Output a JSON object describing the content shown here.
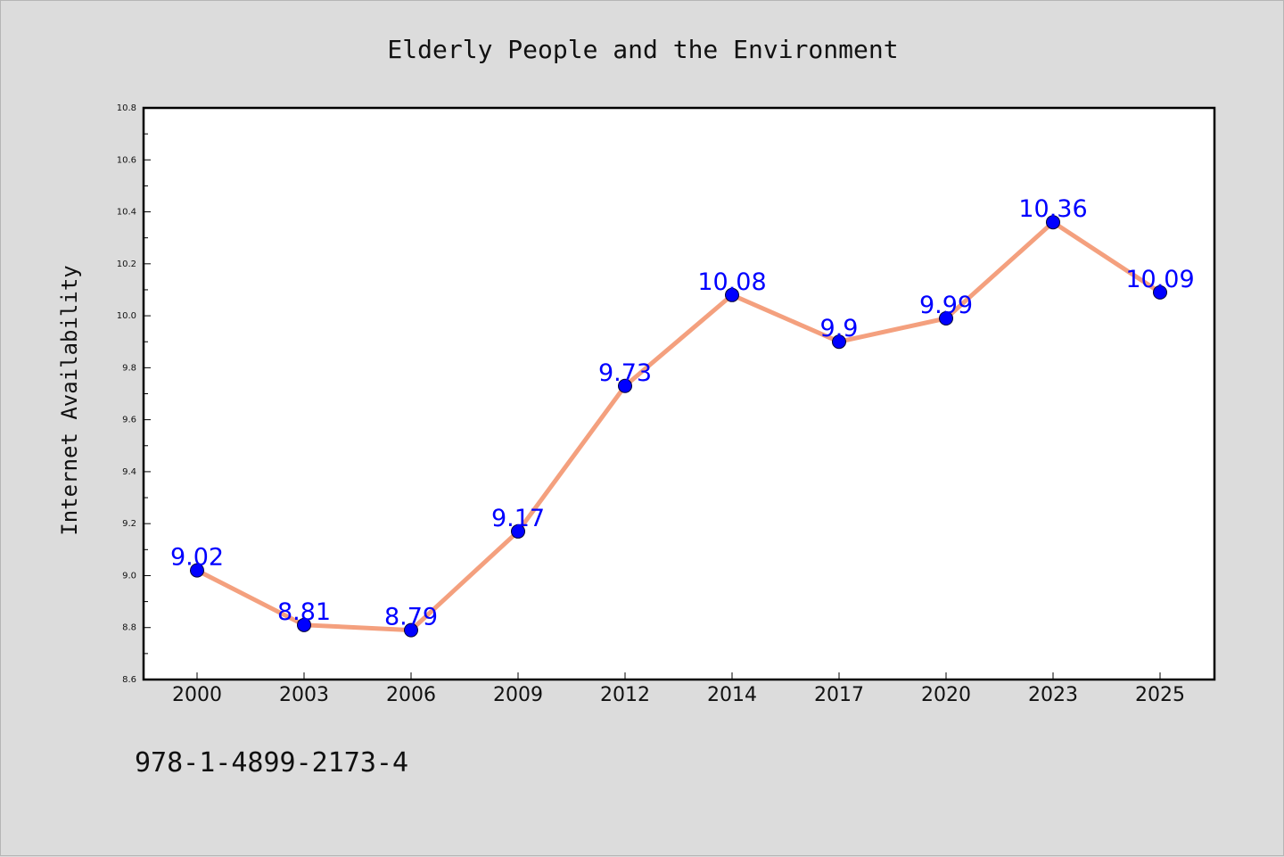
{
  "chart_data": {
    "type": "line",
    "title": "Elderly People and the Environment",
    "xlabel": "",
    "ylabel": "Internet Availability",
    "categories": [
      "2000",
      "2003",
      "2006",
      "2009",
      "2012",
      "2014",
      "2017",
      "2020",
      "2023",
      "2025"
    ],
    "values": [
      9.02,
      8.81,
      8.79,
      9.17,
      9.73,
      10.08,
      9.9,
      9.99,
      10.36,
      10.09
    ],
    "value_labels": [
      "9.02",
      "8.81",
      "8.79",
      "9.17",
      "9.73",
      "10.08",
      "9.9",
      "9.99",
      "10.36",
      "10.09"
    ],
    "ylim": [
      8.6,
      10.8
    ],
    "yticks": [
      "8.6",
      "8.8",
      "9.0",
      "9.2",
      "9.4",
      "9.6",
      "9.8",
      "10.0",
      "10.2",
      "10.4",
      "10.6",
      "10.8"
    ],
    "grid": false,
    "legend": "none",
    "line_color": "#f4a07e",
    "marker_color": "#0000ff",
    "label_color": "#0000ff"
  },
  "footer": {
    "isbn": "978-1-4899-2173-4"
  }
}
